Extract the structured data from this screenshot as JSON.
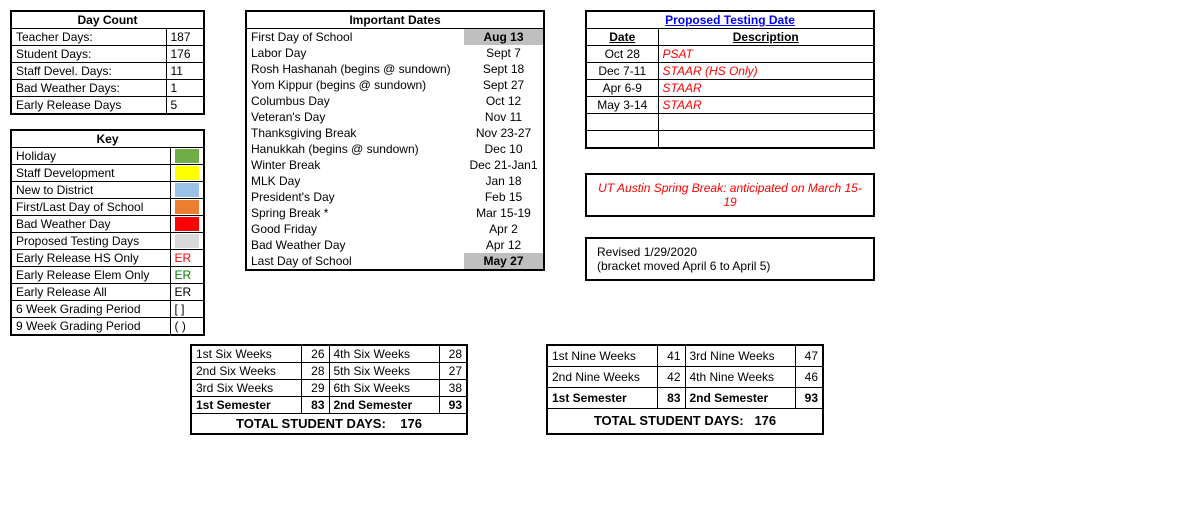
{
  "colors": {
    "highlight_bg": "#bfbfbf",
    "link": "#0000ff",
    "warn": "#ff0000",
    "green": "#008000"
  },
  "day_count": {
    "title": "Day Count",
    "rows": [
      {
        "label": "Teacher Days:",
        "value": "187"
      },
      {
        "label": "Student Days:",
        "value": "176"
      },
      {
        "label": "Staff Devel. Days:",
        "value": "11"
      },
      {
        "label": "Bad Weather Days:",
        "value": "1"
      },
      {
        "label": "Early Release Days",
        "value": "5"
      }
    ]
  },
  "key": {
    "title": "Key",
    "rows": [
      {
        "label": "Holiday",
        "color": "#70ad47"
      },
      {
        "label": "Staff Development",
        "color": "#ffff00"
      },
      {
        "label": "New to District",
        "color": "#9bc2e6"
      },
      {
        "label": "First/Last Day of School",
        "color": "#ed7d31"
      },
      {
        "label": "Bad Weather Day",
        "color": "#ff0000"
      },
      {
        "label": "Proposed Testing Days",
        "color": "#d9d9d9"
      },
      {
        "label": "Early Release HS Only",
        "symbol": "ER",
        "symbol_color": "#ff0000"
      },
      {
        "label": "Early Release Elem Only",
        "symbol": "ER",
        "symbol_color": "#008000"
      },
      {
        "label": "Early Release All",
        "symbol": "ER",
        "symbol_color": "#000000"
      },
      {
        "label": "6 Week Grading Period",
        "symbol": "[ ]",
        "symbol_color": "#000000"
      },
      {
        "label": "9 Week Grading Period",
        "symbol": "( )",
        "symbol_color": "#000000"
      }
    ]
  },
  "important_dates": {
    "title": "Important Dates",
    "rows": [
      {
        "label": "First Day of School",
        "date": "Aug 13",
        "highlight": true
      },
      {
        "label": "Labor Day",
        "date": "Sept 7"
      },
      {
        "label": "Rosh Hashanah (begins @ sundown)",
        "date": "Sept 18"
      },
      {
        "label": "Yom Kippur (begins @ sundown)",
        "date": "Sept 27"
      },
      {
        "label": "Columbus Day",
        "date": "Oct 12"
      },
      {
        "label": "Veteran's Day",
        "date": "Nov 11"
      },
      {
        "label": "Thanksgiving Break",
        "date": "Nov 23-27"
      },
      {
        "label": "Hanukkah (begins @ sundown)",
        "date": "Dec 10"
      },
      {
        "label": "Winter Break",
        "date": "Dec 21-Jan1"
      },
      {
        "label": "MLK Day",
        "date": "Jan 18"
      },
      {
        "label": "President's Day",
        "date": "Feb 15"
      },
      {
        "label": "Spring Break *",
        "date": "Mar 15-19"
      },
      {
        "label": "Good Friday",
        "date": "Apr 2"
      },
      {
        "label": "Bad Weather Day",
        "date": "Apr 12"
      },
      {
        "label": "Last Day of School",
        "date": "May 27",
        "highlight": true
      }
    ]
  },
  "testing": {
    "title": "Proposed Testing Date",
    "col1": "Date",
    "col2": "Description",
    "rows": [
      {
        "date": "Oct 28",
        "desc": "PSAT"
      },
      {
        "date": "Dec 7-11",
        "desc": "STAAR (HS Only)"
      },
      {
        "date": "Apr 6-9",
        "desc": "STAAR"
      },
      {
        "date": "May 3-14",
        "desc": "STAAR"
      },
      {
        "date": "",
        "desc": ""
      },
      {
        "date": "",
        "desc": ""
      }
    ]
  },
  "ut_note": "UT Austin Spring Break: anticipated on March 15-19",
  "revision": {
    "line1": "Revised 1/29/2020",
    "line2": "(bracket moved April 6 to April 5)"
  },
  "six_weeks": {
    "left": [
      {
        "label": "1st Six Weeks",
        "value": "26"
      },
      {
        "label": "2nd Six Weeks",
        "value": "28"
      },
      {
        "label": "3rd Six Weeks",
        "value": "29"
      }
    ],
    "right": [
      {
        "label": "4th Six Weeks",
        "value": "28"
      },
      {
        "label": "5th Six Weeks",
        "value": "27"
      },
      {
        "label": "6th Six Weeks",
        "value": "38"
      }
    ],
    "sem1_label": "1st Semester",
    "sem1_val": "83",
    "sem2_label": "2nd Semester",
    "sem2_val": "93",
    "total_label": "TOTAL STUDENT DAYS:",
    "total_val": "176"
  },
  "nine_weeks": {
    "left": [
      {
        "label": "1st Nine Weeks",
        "value": "41"
      },
      {
        "label": "2nd Nine Weeks",
        "value": "42"
      }
    ],
    "right": [
      {
        "label": "3rd Nine Weeks",
        "value": "47"
      },
      {
        "label": "4th Nine Weeks",
        "value": "46"
      }
    ],
    "sem1_label": "1st Semester",
    "sem1_val": "83",
    "sem2_label": "2nd Semester",
    "sem2_val": "93",
    "total_label": "TOTAL STUDENT DAYS:",
    "total_val": "176"
  }
}
